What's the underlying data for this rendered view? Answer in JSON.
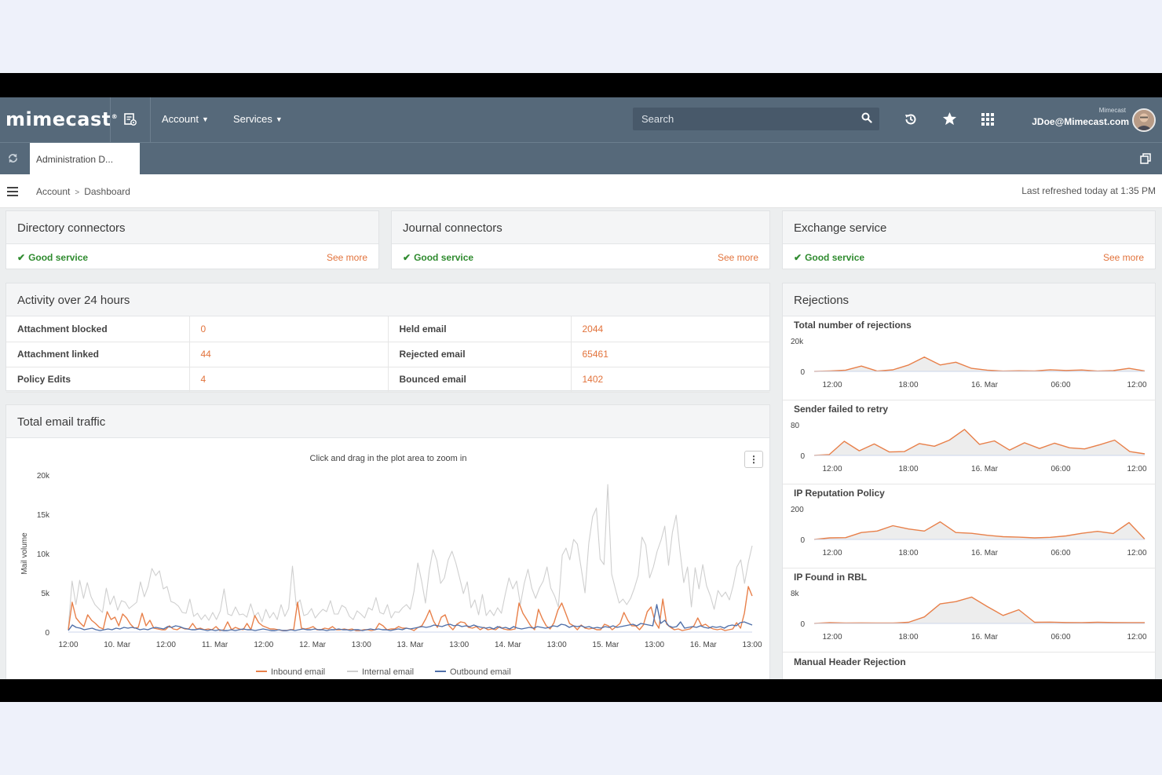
{
  "header": {
    "logo": "mimecast",
    "nav": [
      {
        "label": "Account"
      },
      {
        "label": "Services"
      }
    ],
    "search_placeholder": "Search",
    "user_org": "Mimecast",
    "user_email": "JDoe@Mimecast.com"
  },
  "tabs": [
    {
      "label": "Administration D..."
    }
  ],
  "breadcrumb": {
    "items": [
      "Account",
      "Dashboard"
    ],
    "refreshed": "Last refreshed today at 1:35 PM"
  },
  "status_panels": [
    {
      "title": "Directory connectors",
      "status": "Good service",
      "link": "See more"
    },
    {
      "title": "Journal connectors",
      "status": "Good service",
      "link": "See more"
    },
    {
      "title": "Exchange service",
      "status": "Good service",
      "link": "See more"
    }
  ],
  "activity": {
    "title": "Activity over 24 hours",
    "rows": [
      {
        "left_label": "Attachment blocked",
        "left_value": "0",
        "right_label": "Held email",
        "right_value": "2044"
      },
      {
        "left_label": "Attachment linked",
        "left_value": "44",
        "right_label": "Rejected email",
        "right_value": "65461"
      },
      {
        "left_label": "Policy Edits",
        "left_value": "4",
        "right_label": "Bounced email",
        "right_value": "1402"
      }
    ]
  },
  "traffic": {
    "title": "Total email traffic",
    "note": "Click and drag in the plot area to zoom in",
    "menu_icon": "kebab-icon"
  },
  "chart_data": [
    {
      "type": "line",
      "ylabel": "Mail volume",
      "y_ticks": [
        "0",
        "5k",
        "10k",
        "15k",
        "20k"
      ],
      "ylim": [
        0,
        20000
      ],
      "x_ticks": [
        "12:00",
        "10. Mar",
        "12:00",
        "11. Mar",
        "12:00",
        "12. Mar",
        "13:00",
        "13. Mar",
        "13:00",
        "14. Mar",
        "13:00",
        "15. Mar",
        "13:00",
        "16. Mar",
        "13:00"
      ],
      "legend": "bottom",
      "series": [
        {
          "name": "Inbound email",
          "color": "#e8804a",
          "values": [
            300,
            3800,
            1800,
            1200,
            700,
            2200,
            1500,
            1100,
            600,
            400,
            2600,
            1600,
            1900,
            800,
            2300,
            1800,
            1000,
            500,
            600,
            2400,
            800,
            1500,
            500,
            400,
            300,
            300,
            800,
            400,
            300,
            600,
            400,
            400,
            1100,
            400,
            500,
            300,
            400,
            300,
            700,
            200,
            300,
            1300,
            300,
            600,
            400,
            300,
            1100,
            300,
            2100,
            1200,
            800,
            600,
            400,
            400,
            300,
            200,
            200,
            300,
            300,
            3800,
            500,
            400,
            500,
            700,
            300,
            300,
            500,
            400,
            700,
            300,
            300,
            400,
            300,
            400,
            200,
            200,
            300,
            300,
            200,
            300,
            1100,
            800,
            300,
            400,
            400,
            700,
            500,
            500,
            400,
            200,
            600,
            800,
            1700,
            2800,
            1400,
            600,
            1900,
            2200,
            800,
            300,
            1000,
            1300,
            1200,
            600,
            500,
            700,
            300,
            600,
            300,
            400,
            300,
            700,
            400,
            300,
            300,
            400,
            3700,
            2400,
            1600,
            800,
            300,
            2900,
            1700,
            800,
            400,
            1200,
            2800,
            3700,
            2400,
            1100,
            800,
            300,
            900,
            500,
            400,
            500,
            300,
            300,
            1000,
            800,
            300,
            700,
            1100,
            2500,
            1500,
            800,
            800,
            300,
            900,
            2600,
            3200,
            1300,
            500,
            4200,
            1000,
            600,
            300,
            400,
            200,
            300,
            400,
            800,
            1800,
            800,
            1000,
            600,
            400,
            300,
            400,
            200,
            300,
            400,
            1200,
            500,
            2400,
            5800,
            4600
          ]
        },
        {
          "name": "Internal email",
          "color": "#cfcfcf",
          "values": [
            500,
            6500,
            3500,
            6600,
            4300,
            6300,
            4500,
            3500,
            3000,
            2500,
            5600,
            3500,
            4600,
            2800,
            4000,
            3800,
            3000,
            3400,
            3800,
            6400,
            4500,
            5800,
            8100,
            7200,
            7800,
            5500,
            5800,
            3900,
            3700,
            3300,
            2500,
            2400,
            4200,
            2000,
            2400,
            1600,
            2200,
            1500,
            2500,
            1600,
            2700,
            5500,
            2300,
            2100,
            3200,
            2200,
            2300,
            1900,
            3600,
            2000,
            2500,
            1300,
            2900,
            1800,
            2500,
            1600,
            3500,
            2000,
            3000,
            8400,
            3400,
            4100,
            2100,
            2300,
            3000,
            1800,
            2400,
            2900,
            2600,
            4000,
            2300,
            2300,
            3400,
            3100,
            2000,
            1600,
            2700,
            2300,
            1800,
            3100,
            2800,
            4400,
            2500,
            2300,
            3500,
            1800,
            2600,
            2500,
            3100,
            3500,
            2900,
            5200,
            8800,
            6500,
            3700,
            7800,
            10500,
            9100,
            6200,
            6900,
            9200,
            10300,
            8800,
            6900,
            4900,
            6400,
            3100,
            4100,
            2200,
            4800,
            2100,
            2800,
            2100,
            3100,
            2400,
            4800,
            6900,
            5500,
            6500,
            3500,
            6200,
            8000,
            5600,
            4300,
            5600,
            6500,
            8300,
            5600,
            4600,
            3200,
            9800,
            10700,
            9200,
            11800,
            11200,
            8100,
            5000,
            11300,
            14700,
            15800,
            9300,
            8600,
            18800,
            7400,
            5500,
            3700,
            4200,
            3500,
            4300,
            5600,
            7200,
            12100,
            11100,
            6900,
            8300,
            10300,
            11700,
            13500,
            8500,
            12700,
            14900,
            10300,
            6300,
            8300,
            3200,
            8200,
            5500,
            8600,
            5900,
            4600,
            2900,
            5300,
            4500,
            5100,
            4100,
            5900,
            8300,
            9200,
            6200,
            8900,
            11000
          ]
        },
        {
          "name": "Outbound email",
          "color": "#4f6fa8",
          "values": [
            200,
            900,
            600,
            500,
            300,
            400,
            500,
            300,
            200,
            300,
            400,
            300,
            500,
            400,
            600,
            500,
            600,
            500,
            300,
            400,
            300,
            500,
            600,
            500,
            400,
            700,
            600,
            800,
            700,
            500,
            400,
            300,
            300,
            400,
            300,
            200,
            300,
            200,
            300,
            200,
            200,
            300,
            200,
            300,
            400,
            300,
            300,
            200,
            300,
            400,
            300,
            200,
            200,
            300,
            200,
            200,
            300,
            200,
            300,
            400,
            300,
            300,
            400,
            300,
            300,
            200,
            300,
            300,
            400,
            300,
            300,
            200,
            300,
            300,
            200,
            300,
            400,
            300,
            400,
            300,
            300,
            200,
            300,
            400,
            300,
            500,
            400,
            500,
            600,
            700,
            600,
            700,
            900,
            800,
            700,
            900,
            1000,
            800,
            900,
            700,
            800,
            700,
            900,
            700,
            600,
            500,
            600,
            400,
            700,
            500,
            600,
            400,
            700,
            500,
            400,
            500,
            600,
            500,
            700,
            600,
            500,
            600,
            800,
            700,
            1000,
            900,
            600,
            800,
            700,
            800,
            600,
            700,
            500,
            600,
            500,
            700,
            600,
            800,
            600,
            700,
            800,
            900,
            1000,
            800,
            1100,
            1000,
            900,
            800,
            3500,
            1100,
            1500,
            800,
            600,
            700,
            1300,
            500,
            600,
            700,
            600,
            800,
            600,
            500,
            700,
            600,
            700,
            500,
            800,
            900,
            800,
            1200,
            1300,
            1100,
            900
          ]
        }
      ]
    },
    {
      "type": "area",
      "title": "Total number of rejections",
      "y_ticks": [
        "0",
        "20k"
      ],
      "ylim": [
        0,
        20000
      ],
      "x_ticks": [
        "12:00",
        "18:00",
        "16. Mar",
        "06:00",
        "12:00"
      ],
      "values": [
        0,
        300,
        800,
        3500,
        200,
        1000,
        4200,
        9400,
        4200,
        6000,
        2000,
        800,
        200,
        400,
        300,
        1100,
        600,
        900,
        200,
        500,
        2000,
        300
      ]
    },
    {
      "type": "area",
      "title": "Sender failed to retry",
      "y_ticks": [
        "0",
        "80"
      ],
      "ylim": [
        0,
        80
      ],
      "x_ticks": [
        "12:00",
        "18:00",
        "16. Mar",
        "06:00",
        "12:00"
      ],
      "values": [
        0,
        2,
        37,
        12,
        30,
        9,
        10,
        31,
        24,
        40,
        68,
        29,
        38,
        14,
        33,
        18,
        32,
        20,
        17,
        28,
        40,
        10,
        4
      ]
    },
    {
      "type": "area",
      "title": "IP Reputation Policy",
      "y_ticks": [
        "0",
        "200"
      ],
      "ylim": [
        0,
        200
      ],
      "x_ticks": [
        "12:00",
        "18:00",
        "16. Mar",
        "06:00",
        "12:00"
      ],
      "values": [
        0,
        10,
        12,
        45,
        55,
        90,
        68,
        55,
        115,
        45,
        40,
        27,
        18,
        15,
        10,
        14,
        23,
        40,
        53,
        39,
        110,
        2
      ]
    },
    {
      "type": "area",
      "title": "IP Found in RBL",
      "y_ticks": [
        "0",
        "8k"
      ],
      "ylim": [
        0,
        8000
      ],
      "x_ticks": [
        "12:00",
        "18:00",
        "16. Mar",
        "06:00",
        "12:00"
      ],
      "values": [
        0,
        200,
        100,
        150,
        120,
        100,
        300,
        1700,
        5100,
        5700,
        6900,
        4400,
        2100,
        3600,
        300,
        350,
        250,
        200,
        300,
        250,
        200,
        220
      ]
    }
  ],
  "rejections": {
    "title": "Rejections",
    "extra_item": "Manual Header Rejection"
  }
}
